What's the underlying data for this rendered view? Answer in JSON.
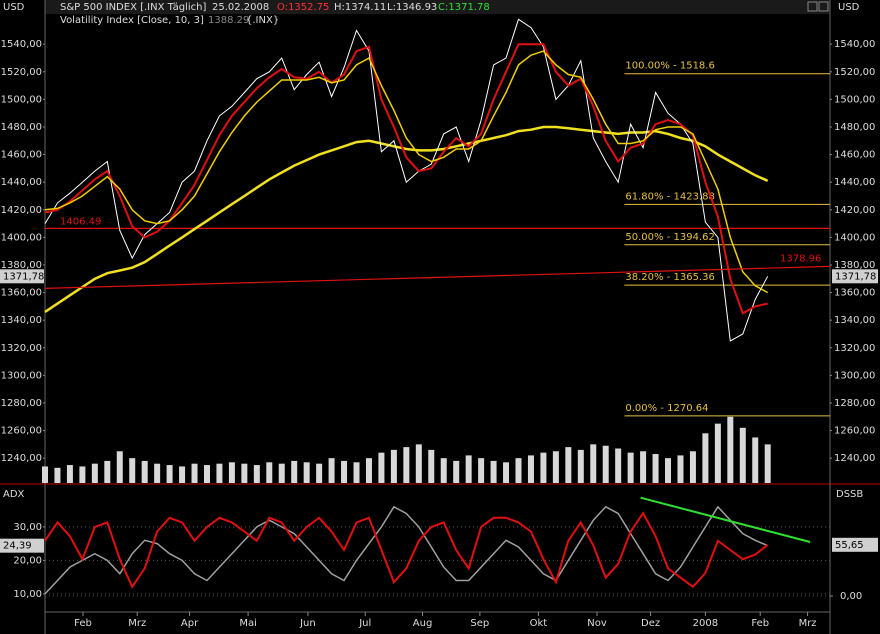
{
  "chart_data": [
    {
      "type": "line",
      "unit": "USD",
      "title": "S&P 500 INDEX [.INX  Täglich]",
      "date": "25.02.2008",
      "ohlc": [
        "O:1352.75",
        "H:1374.11",
        "L:1346.93",
        "C:1371.78"
      ],
      "indicator": "Volatility Index [Close, 10, 3]",
      "indicator_value": "1388.29",
      "indicator_symbol": "{.INX}",
      "xlim": [
        0,
        63
      ],
      "ylim": [
        1222,
        1572
      ],
      "yticks": [
        {
          "value": 1240,
          "label": "1240,00"
        },
        {
          "value": 1260,
          "label": "1260,00"
        },
        {
          "value": 1280,
          "label": "1280,00"
        },
        {
          "value": 1300,
          "label": "1300,00"
        },
        {
          "value": 1320,
          "label": "1320,00"
        },
        {
          "value": 1340,
          "label": "1340,00"
        },
        {
          "value": 1360,
          "label": "1360,00"
        },
        {
          "value": 1380,
          "label": "1380,00"
        },
        {
          "value": 1400,
          "label": "1400,00"
        },
        {
          "value": 1420,
          "label": "1420,00"
        },
        {
          "value": 1440,
          "label": "1440,00"
        },
        {
          "value": 1460,
          "label": "1460,00"
        },
        {
          "value": 1480,
          "label": "1480,00"
        },
        {
          "value": 1500,
          "label": "1500,00"
        },
        {
          "value": 1520,
          "label": "1520,00"
        },
        {
          "value": 1540,
          "label": "1540,00"
        }
      ],
      "x": [
        0,
        1,
        2,
        3,
        4,
        5,
        6,
        7,
        8,
        9,
        10,
        11,
        12,
        13,
        14,
        15,
        16,
        17,
        18,
        19,
        20,
        21,
        22,
        23,
        24,
        25,
        26,
        27,
        28,
        29,
        30,
        31,
        32,
        33,
        34,
        35,
        36,
        37,
        38,
        39,
        40,
        41,
        42,
        43,
        44,
        45,
        46,
        47,
        48,
        49,
        50,
        51,
        52,
        53,
        54,
        55,
        56,
        57,
        58
      ],
      "series": [
        {
          "color": "#f0e020",
          "width": 2.5,
          "values": [
            1346,
            1352,
            1358,
            1364,
            1370,
            1374,
            1376,
            1378,
            1382,
            1388,
            1394,
            1400,
            1406,
            1412,
            1418,
            1424,
            1430,
            1436,
            1442,
            1447,
            1452,
            1456,
            1460,
            1463,
            1466,
            1469,
            1470,
            1468,
            1466,
            1464,
            1463,
            1463,
            1464,
            1466,
            1468,
            1470,
            1472,
            1474,
            1477,
            1478,
            1480,
            1480,
            1479,
            1478,
            1477,
            1476,
            1475,
            1476,
            1476,
            1477,
            1475,
            1472,
            1470,
            1466,
            1460,
            1455,
            1450,
            1445,
            1441
          ]
        },
        {
          "color": "#ffffff",
          "width": 1,
          "values": [
            1410,
            1425,
            1432,
            1440,
            1448,
            1455,
            1405,
            1385,
            1402,
            1410,
            1418,
            1440,
            1448,
            1470,
            1488,
            1495,
            1505,
            1515,
            1520,
            1530,
            1507,
            1518,
            1527,
            1502,
            1523,
            1550,
            1535,
            1462,
            1470,
            1440,
            1448,
            1453,
            1475,
            1480,
            1455,
            1485,
            1525,
            1530,
            1558,
            1552,
            1538,
            1500,
            1510,
            1528,
            1472,
            1455,
            1440,
            1482,
            1465,
            1505,
            1490,
            1482,
            1468,
            1411,
            1400,
            1325,
            1330,
            1355,
            1371.78
          ]
        },
        {
          "color": "#e01010",
          "width": 2,
          "values": [
            1418,
            1420,
            1426,
            1434,
            1442,
            1448,
            1430,
            1408,
            1400,
            1404,
            1412,
            1425,
            1438,
            1456,
            1474,
            1488,
            1498,
            1508,
            1516,
            1522,
            1516,
            1515,
            1520,
            1512,
            1518,
            1535,
            1538,
            1500,
            1480,
            1458,
            1448,
            1450,
            1462,
            1472,
            1466,
            1475,
            1500,
            1520,
            1540,
            1540,
            1540,
            1520,
            1510,
            1515,
            1495,
            1470,
            1455,
            1465,
            1468,
            1482,
            1485,
            1482,
            1474,
            1440,
            1415,
            1370,
            1345,
            1350,
            1352
          ]
        },
        {
          "color": "#f0d000",
          "width": 1.5,
          "values": [
            1420,
            1421,
            1425,
            1430,
            1437,
            1444,
            1435,
            1420,
            1412,
            1410,
            1412,
            1420,
            1430,
            1446,
            1462,
            1476,
            1488,
            1498,
            1506,
            1514,
            1514,
            1514,
            1516,
            1512,
            1514,
            1525,
            1530,
            1510,
            1492,
            1472,
            1460,
            1455,
            1458,
            1464,
            1464,
            1470,
            1488,
            1505,
            1525,
            1532,
            1535,
            1525,
            1518,
            1516,
            1500,
            1482,
            1468,
            1468,
            1470,
            1478,
            1480,
            1480,
            1475,
            1455,
            1435,
            1400,
            1375,
            1365,
            1360
          ]
        }
      ],
      "volume": {
        "color": "#d8d8d8",
        "values": [
          1234,
          1233,
          1235,
          1234,
          1236,
          1238,
          1245,
          1240,
          1238,
          1236,
          1235,
          1234,
          1236,
          1235,
          1236,
          1237,
          1236,
          1235,
          1237,
          1236,
          1238,
          1237,
          1236,
          1240,
          1238,
          1237,
          1240,
          1244,
          1246,
          1248,
          1250,
          1246,
          1240,
          1238,
          1242,
          1240,
          1238,
          1237,
          1240,
          1242,
          1244,
          1245,
          1248,
          1246,
          1250,
          1249,
          1247,
          1244,
          1245,
          1243,
          1240,
          1242,
          1245,
          1258,
          1265,
          1270,
          1262,
          1255,
          1250
        ]
      },
      "hline": {
        "value": 1406.49,
        "color": "#e01010"
      },
      "trendline": {
        "x": [
          0,
          63
        ],
        "values": [
          1363,
          1378.96
        ],
        "color": "#e01010"
      },
      "fib": {
        "x": [
          46.5,
          63
        ],
        "color": "#e8c040",
        "levels": [
          {
            "value": 1518.6,
            "label": "100.00% - 1518.6"
          },
          {
            "value": 1423.88,
            "label": "61.80% - 1423.88"
          },
          {
            "value": 1394.62,
            "label": "50.00% - 1394.62"
          },
          {
            "value": 1365.36,
            "label": "38.20% - 1365.36"
          },
          {
            "value": 1270.64,
            "label": "0.00% - 1270.64"
          }
        ]
      },
      "last_price": {
        "value": 1371.78,
        "label": "1371,78"
      }
    },
    {
      "type": "line",
      "left_title": "ADX",
      "right_title": "DSSB",
      "xlim": [
        0,
        63
      ],
      "ylim": [
        4.6,
        41.6
      ],
      "y2lim": [
        -17.4,
        117.4
      ],
      "yticks": [
        {
          "value": 10,
          "label": "10,00"
        },
        {
          "value": 20,
          "label": "20,00"
        },
        {
          "value": 30,
          "label": "30,00"
        }
      ],
      "y2ticks": [
        {
          "value": 0,
          "label": "0,00"
        }
      ],
      "grid": true,
      "xticks": [
        {
          "value": 3.05,
          "label": "Feb"
        },
        {
          "value": 7.4,
          "label": "Mrz"
        },
        {
          "value": 11.6,
          "label": "Apr"
        },
        {
          "value": 16.3,
          "label": "Mai"
        },
        {
          "value": 21.1,
          "label": "Jun"
        },
        {
          "value": 25.7,
          "label": "Jul"
        },
        {
          "value": 30.3,
          "label": "Aug"
        },
        {
          "value": 34.9,
          "label": "Sep"
        },
        {
          "value": 39.6,
          "label": "Okt"
        },
        {
          "value": 44.3,
          "label": "Nov"
        },
        {
          "value": 48.6,
          "label": "Dez"
        },
        {
          "value": 53,
          "label": "2008"
        },
        {
          "value": 57.4,
          "label": "Feb"
        },
        {
          "value": 61.2,
          "label": "Mrz"
        }
      ],
      "x": [
        0,
        1,
        2,
        3,
        4,
        5,
        6,
        7,
        8,
        9,
        10,
        11,
        12,
        13,
        14,
        15,
        16,
        17,
        18,
        19,
        20,
        21,
        22,
        23,
        24,
        25,
        26,
        27,
        28,
        29,
        30,
        31,
        32,
        33,
        34,
        35,
        36,
        37,
        38,
        39,
        40,
        41,
        42,
        43,
        44,
        45,
        46,
        47,
        48,
        49,
        50,
        51,
        52,
        53,
        54,
        55,
        56,
        57,
        58
      ],
      "series": [
        {
          "color": "#a0a0a0",
          "width": 1.5,
          "values": [
            10,
            14,
            18,
            20,
            22,
            20,
            16,
            22,
            26,
            25,
            22,
            20,
            16,
            14,
            18,
            22,
            26,
            30,
            32,
            30,
            28,
            24,
            20,
            16,
            14,
            20,
            25,
            30,
            36,
            34,
            30,
            24,
            18,
            14,
            14,
            18,
            22,
            26,
            24,
            20,
            16,
            14,
            20,
            26,
            32,
            36,
            34,
            28,
            22,
            16,
            14,
            18,
            24,
            30,
            36,
            32,
            28,
            26,
            24.39
          ]
        },
        {
          "color": "#e01010",
          "width": 2,
          "axis": "y2",
          "values": [
            60,
            80,
            65,
            40,
            75,
            80,
            40,
            10,
            30,
            70,
            85,
            80,
            60,
            75,
            85,
            80,
            70,
            60,
            85,
            80,
            60,
            75,
            85,
            70,
            50,
            80,
            85,
            50,
            15,
            30,
            60,
            75,
            80,
            50,
            30,
            75,
            85,
            85,
            80,
            70,
            40,
            15,
            60,
            80,
            55,
            20,
            35,
            70,
            90,
            65,
            30,
            20,
            10,
            25,
            60,
            50,
            40,
            45,
            55.65
          ]
        }
      ],
      "trendline": {
        "x": [
          47.8,
          61.4
        ],
        "values": [
          38.7,
          25.5
        ],
        "color": "#30e030"
      },
      "last_left": {
        "value": 24.39,
        "label": "24,39"
      },
      "last_right": {
        "value": 55.65,
        "label": "55,65"
      }
    }
  ]
}
